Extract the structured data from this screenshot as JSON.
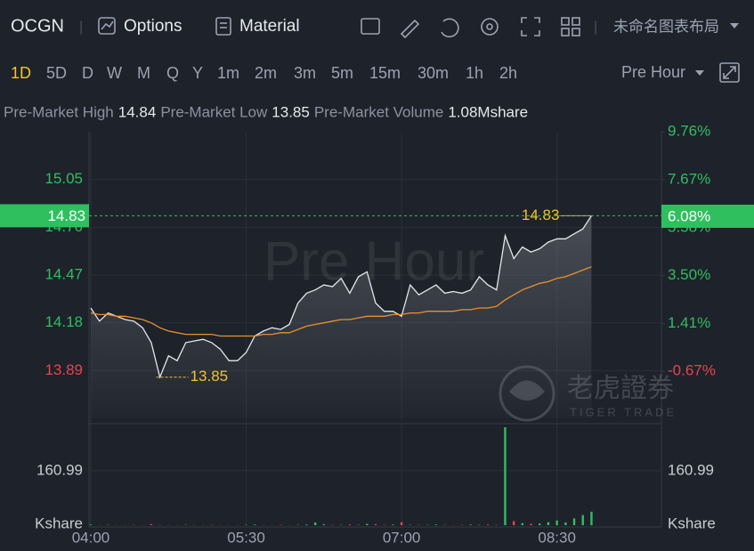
{
  "toolbar": {
    "symbol": "OCGN",
    "buttons": [
      "Options",
      "Material"
    ],
    "layout_name": "未命名图表布局"
  },
  "periods": {
    "items": [
      "1D",
      "5D",
      "D",
      "W",
      "M",
      "Q",
      "Y",
      "1m",
      "2m",
      "3m",
      "5m",
      "15m",
      "30m",
      "1h",
      "2h"
    ],
    "selected": 0,
    "session": "Pre Hour"
  },
  "stats": [
    {
      "label": "Pre-Market High",
      "value": "14.84"
    },
    {
      "label": "Pre-Market Low",
      "value": "13.85"
    },
    {
      "label": "Pre-Market Volume",
      "value": "1.08Mshare"
    }
  ],
  "watermark": {
    "text": "Pre Hour",
    "brand": "老虎證券",
    "brand_en": "TIGER TRADE"
  },
  "chart_data": [
    {
      "type": "line",
      "x": [
        "04:00",
        "04:05",
        "04:10",
        "04:15",
        "04:20",
        "04:25",
        "04:30",
        "04:35",
        "04:40",
        "04:45",
        "04:50",
        "04:55",
        "05:00",
        "05:05",
        "05:10",
        "05:15",
        "05:20",
        "05:25",
        "05:30",
        "05:35",
        "05:40",
        "05:45",
        "05:50",
        "05:55",
        "06:00",
        "06:05",
        "06:10",
        "06:15",
        "06:20",
        "06:25",
        "06:30",
        "06:35",
        "06:40",
        "06:45",
        "06:50",
        "06:55",
        "07:00",
        "07:05",
        "07:10",
        "07:15",
        "07:20",
        "07:25",
        "07:30",
        "07:35",
        "07:40",
        "07:45",
        "07:50",
        "07:55",
        "08:00",
        "08:05",
        "08:10",
        "08:15",
        "08:20",
        "08:25",
        "08:30",
        "08:35",
        "08:40",
        "08:45",
        "08:50"
      ],
      "xlim": [
        "04:00",
        "09:30"
      ],
      "series": [
        {
          "color": "#e4e6ea",
          "values": [
            14.27,
            14.19,
            14.24,
            14.22,
            14.2,
            14.19,
            14.15,
            14.06,
            13.85,
            13.98,
            13.95,
            14.06,
            14.07,
            14.08,
            14.06,
            14.02,
            13.95,
            13.95,
            14.0,
            14.1,
            14.13,
            14.15,
            14.14,
            14.17,
            14.3,
            14.36,
            14.38,
            14.41,
            14.4,
            14.45,
            14.36,
            14.46,
            14.49,
            14.3,
            14.25,
            14.25,
            14.22,
            14.41,
            14.35,
            14.38,
            14.41,
            14.36,
            14.37,
            14.36,
            14.38,
            14.46,
            14.41,
            14.38,
            14.71,
            14.57,
            14.64,
            14.61,
            14.63,
            14.67,
            14.69,
            14.69,
            14.72,
            14.75,
            14.83
          ]
        },
        {
          "color": "#e8912f",
          "values": [
            14.24,
            14.23,
            14.23,
            14.22,
            14.22,
            14.21,
            14.2,
            14.18,
            14.15,
            14.13,
            14.12,
            14.11,
            14.11,
            14.11,
            14.11,
            14.1,
            14.1,
            14.1,
            14.1,
            14.1,
            14.11,
            14.11,
            14.12,
            14.12,
            14.14,
            14.16,
            14.17,
            14.18,
            14.19,
            14.2,
            14.2,
            14.21,
            14.22,
            14.22,
            14.22,
            14.23,
            14.23,
            14.24,
            14.24,
            14.25,
            14.25,
            14.25,
            14.25,
            14.26,
            14.26,
            14.27,
            14.27,
            14.28,
            14.32,
            14.35,
            14.38,
            14.4,
            14.42,
            14.43,
            14.45,
            14.46,
            14.48,
            14.5,
            14.52
          ]
        }
      ],
      "ylim": [
        13.6,
        15.34
      ],
      "yticks": [
        15.05,
        14.76,
        14.47,
        14.18,
        13.89
      ],
      "y2lim": [
        -2.72,
        9.76
      ],
      "y2ticks": [
        {
          "value": 9.76,
          "label": "9.76%"
        },
        {
          "value": 7.67,
          "label": "7.67%"
        },
        {
          "value": 5.58,
          "label": "5.58%"
        },
        {
          "value": 3.5,
          "label": "3.50%"
        },
        {
          "value": 1.41,
          "label": "1.41%"
        },
        {
          "value": -0.67,
          "label": "-0.67%"
        }
      ],
      "up_color": "#2fbf5f",
      "down_color": "#e5444e",
      "grid": true,
      "last": {
        "value": 14.83,
        "change": {
          "value": 6.08,
          "label": "6.08%"
        }
      },
      "annotations": [
        {
          "value": 14.83,
          "x": "08:50"
        },
        {
          "value": 13.85,
          "x": "04:40"
        }
      ]
    },
    {
      "type": "bar",
      "values": [
        2,
        0.5,
        1,
        0.5,
        0.5,
        1,
        0.5,
        3,
        1,
        0.5,
        0.5,
        1,
        0.5,
        0.5,
        1,
        0.5,
        0.5,
        0.5,
        1,
        2,
        0.5,
        0.5,
        1,
        0.5,
        1,
        2,
        8,
        3,
        1,
        1,
        2,
        1,
        4,
        3,
        1,
        2,
        9,
        1,
        1,
        1,
        2,
        1,
        0.5,
        1,
        2,
        1,
        2,
        1,
        290,
        12,
        6,
        4,
        5,
        9,
        14,
        8,
        20,
        30,
        40
      ],
      "ylim": [
        0,
        290
      ],
      "yticks": [
        160.99
      ],
      "unit": "Kshare",
      "xticks": [
        "04:00",
        "05:30",
        "07:00",
        "08:30"
      ],
      "up_color": "#2fbf5f",
      "down_color": "#e5444e"
    }
  ]
}
